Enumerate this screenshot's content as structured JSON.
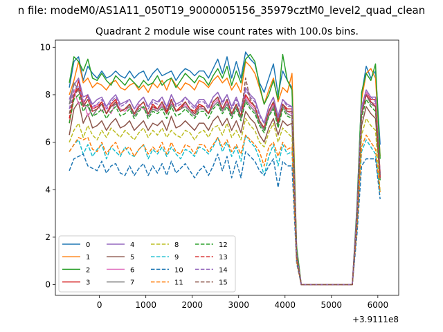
{
  "chart_data": {
    "type": "line",
    "suptitle": "n file: modeM0/AS1A11_050T19_9000005156_35979cztM0_level2_quad_clean",
    "title": "Quadrant 2 module wise count rates with 100.0s bins.",
    "xlabel": "",
    "ylabel": "",
    "x_offset_label": "+3.9111e8",
    "xlim": [
      -950,
      6450
    ],
    "ylim": [
      -0.45,
      10.3
    ],
    "xticks": [
      0,
      1000,
      2000,
      3000,
      4000,
      5000,
      6000
    ],
    "yticks": [
      0,
      2,
      4,
      6,
      8,
      10
    ],
    "grid": false,
    "legend": {
      "location": "lower-left",
      "columns": 4
    },
    "x": [
      -650,
      -550,
      -450,
      -350,
      -250,
      -150,
      -50,
      50,
      150,
      250,
      350,
      450,
      550,
      650,
      750,
      850,
      950,
      1050,
      1150,
      1250,
      1350,
      1450,
      1550,
      1650,
      1750,
      1850,
      1950,
      2050,
      2150,
      2250,
      2350,
      2450,
      2550,
      2650,
      2750,
      2850,
      2950,
      3050,
      3150,
      3250,
      3350,
      3450,
      3550,
      3650,
      3750,
      3850,
      3950,
      4050,
      4150,
      4250,
      4350,
      5450,
      5550,
      5650,
      5750,
      5850,
      5950,
      6050
    ],
    "series": [
      {
        "name": "0",
        "color": "#1f77b4",
        "dash": "solid",
        "values": [
          8.3,
          9.4,
          9.6,
          8.6,
          9.2,
          8.9,
          8.7,
          9.0,
          8.7,
          8.8,
          9.0,
          8.8,
          8.7,
          9.0,
          8.7,
          8.9,
          9.0,
          8.6,
          8.9,
          9.1,
          8.8,
          8.9,
          9.0,
          8.6,
          8.9,
          9.1,
          9.0,
          8.8,
          9.0,
          9.0,
          8.7,
          9.1,
          9.5,
          8.9,
          9.6,
          8.7,
          9.4,
          8.7,
          9.8,
          9.5,
          9.3,
          8.5,
          8.1,
          8.7,
          9.3,
          8.0,
          9.0,
          8.6,
          8.3,
          1.5,
          0,
          0,
          3.3,
          8.0,
          9.2,
          8.7,
          9.0,
          5.9
        ]
      },
      {
        "name": "1",
        "color": "#ff7f0e",
        "dash": "solid",
        "values": [
          8.0,
          8.6,
          9.4,
          8.5,
          8.7,
          8.3,
          8.5,
          8.4,
          8.2,
          8.5,
          8.6,
          8.3,
          8.2,
          8.4,
          8.5,
          8.2,
          8.4,
          8.1,
          8.5,
          8.3,
          8.6,
          8.2,
          8.7,
          8.4,
          8.2,
          8.5,
          8.4,
          8.2,
          8.6,
          8.5,
          8.3,
          8.6,
          8.8,
          8.5,
          8.7,
          8.2,
          8.5,
          8.1,
          9.4,
          9.2,
          8.9,
          8.3,
          7.6,
          8.2,
          8.7,
          7.7,
          8.3,
          8.1,
          8.9,
          1.5,
          0,
          0,
          3.1,
          7.8,
          8.9,
          9.1,
          8.7,
          5.4
        ]
      },
      {
        "name": "2",
        "color": "#2ca02c",
        "dash": "solid",
        "values": [
          8.5,
          9.6,
          9.4,
          9.0,
          9.5,
          8.7,
          8.6,
          8.9,
          8.6,
          8.4,
          8.8,
          8.6,
          8.4,
          8.7,
          8.5,
          8.3,
          8.6,
          8.4,
          8.5,
          8.8,
          8.4,
          8.6,
          8.7,
          8.3,
          8.6,
          8.9,
          8.7,
          8.5,
          8.8,
          8.7,
          8.4,
          8.8,
          9.1,
          8.7,
          9.2,
          8.4,
          9.0,
          8.5,
          9.5,
          9.7,
          9.4,
          8.4,
          7.6,
          8.0,
          8.6,
          7.8,
          9.7,
          8.6,
          8.2,
          1.6,
          0,
          0,
          3.2,
          8.1,
          8.9,
          8.6,
          9.3,
          5.3
        ]
      },
      {
        "name": "3",
        "color": "#d62728",
        "dash": "solid",
        "values": [
          6.8,
          7.9,
          8.6,
          7.6,
          8.0,
          7.4,
          7.5,
          7.7,
          7.2,
          7.6,
          7.8,
          7.3,
          7.4,
          7.6,
          7.2,
          7.5,
          7.7,
          7.2,
          7.6,
          7.4,
          7.7,
          7.3,
          7.8,
          7.3,
          7.5,
          7.7,
          7.4,
          7.3,
          7.6,
          7.5,
          7.2,
          7.7,
          7.9,
          7.4,
          7.8,
          7.2,
          7.6,
          7.1,
          8.0,
          7.7,
          7.5,
          6.9,
          6.6,
          7.3,
          7.7,
          6.9,
          7.6,
          7.4,
          7.4,
          1.2,
          0,
          0,
          2.8,
          7.2,
          8.1,
          7.8,
          7.8,
          4.7
        ]
      },
      {
        "name": "4",
        "color": "#9467bd",
        "dash": "solid",
        "values": [
          7.8,
          8.4,
          8.7,
          7.9,
          8.0,
          7.6,
          7.8,
          7.9,
          7.5,
          7.8,
          8.0,
          7.6,
          7.7,
          7.8,
          7.4,
          7.7,
          7.9,
          7.5,
          7.8,
          7.7,
          7.9,
          7.5,
          8.0,
          7.6,
          7.7,
          7.9,
          7.7,
          7.5,
          7.8,
          7.8,
          7.5,
          7.9,
          8.1,
          7.7,
          8.0,
          7.5,
          7.9,
          7.4,
          8.3,
          8.0,
          7.8,
          7.2,
          6.8,
          7.5,
          7.9,
          7.1,
          7.8,
          7.6,
          7.5,
          1.3,
          0,
          0,
          3.0,
          7.5,
          8.2,
          7.9,
          7.9,
          4.6
        ]
      },
      {
        "name": "5",
        "color": "#8c564b",
        "dash": "solid",
        "values": [
          6.3,
          7.4,
          7.7,
          6.8,
          7.2,
          6.6,
          6.7,
          6.9,
          6.5,
          6.8,
          7.0,
          6.6,
          6.7,
          6.9,
          6.5,
          6.7,
          6.9,
          6.5,
          6.8,
          6.7,
          6.9,
          6.5,
          7.1,
          6.6,
          6.7,
          6.9,
          6.7,
          6.5,
          6.8,
          6.8,
          6.5,
          6.9,
          7.1,
          6.7,
          7.0,
          6.5,
          6.9,
          6.4,
          7.3,
          7.0,
          6.8,
          6.3,
          6.0,
          6.6,
          7.0,
          6.3,
          6.9,
          6.7,
          6.8,
          1.2,
          0,
          0,
          2.6,
          6.7,
          7.5,
          7.2,
          7.0,
          4.4
        ]
      },
      {
        "name": "6",
        "color": "#e377c2",
        "dash": "solid",
        "values": [
          7.6,
          8.2,
          7.6,
          7.8,
          7.1,
          7.4,
          7.6,
          7.3,
          7.5,
          7.2,
          7.7,
          7.4,
          7.3,
          7.5,
          7.2,
          7.6,
          7.4,
          7.2,
          7.5,
          7.3,
          7.6,
          7.2,
          7.7,
          7.3,
          7.4,
          7.6,
          7.3,
          7.2,
          7.5,
          7.4,
          7.2,
          7.6,
          7.8,
          7.3,
          7.7,
          7.1,
          7.5,
          7.0,
          7.9,
          7.6,
          7.4,
          6.9,
          6.5,
          7.2,
          7.6,
          6.8,
          7.6,
          7.3,
          7.2,
          1.2,
          0,
          0,
          2.9,
          7.3,
          8.1,
          7.7,
          7.6,
          4.5
        ]
      },
      {
        "name": "7",
        "color": "#7f7f7f",
        "dash": "solid",
        "values": [
          7.6,
          8.5,
          8.2,
          7.6,
          7.5,
          7.1,
          7.4,
          7.6,
          7.2,
          7.5,
          7.6,
          7.3,
          7.4,
          7.5,
          7.1,
          7.4,
          7.5,
          7.1,
          7.4,
          7.3,
          7.5,
          7.2,
          7.6,
          7.3,
          7.4,
          7.5,
          7.3,
          7.1,
          7.4,
          7.4,
          7.2,
          7.5,
          7.7,
          7.3,
          7.6,
          7.1,
          7.5,
          7.0,
          7.8,
          7.5,
          7.3,
          6.8,
          6.5,
          7.1,
          7.5,
          6.7,
          7.5,
          7.2,
          7.1,
          1.2,
          0,
          0,
          2.8,
          7.2,
          8.0,
          7.6,
          7.5,
          4.6
        ]
      },
      {
        "name": "8",
        "color": "#bcbd22",
        "dash": "dashed",
        "values": [
          6.0,
          6.5,
          6.8,
          6.2,
          6.7,
          6.3,
          6.1,
          6.5,
          6.2,
          6.6,
          6.4,
          6.2,
          6.5,
          6.3,
          6.1,
          6.4,
          6.6,
          6.2,
          6.5,
          6.3,
          6.6,
          6.2,
          6.5,
          6.3,
          6.2,
          6.5,
          6.4,
          6.1,
          6.4,
          6.5,
          6.2,
          6.6,
          6.7,
          6.3,
          6.8,
          6.2,
          6.5,
          6.1,
          7.0,
          6.7,
          6.5,
          6.0,
          5.8,
          6.4,
          6.8,
          6.0,
          6.6,
          6.4,
          6.2,
          1.1,
          0,
          0,
          2.5,
          6.3,
          7.0,
          6.7,
          6.5,
          3.9
        ]
      },
      {
        "name": "9",
        "color": "#17becf",
        "dash": "dashed",
        "values": [
          5.6,
          5.9,
          6.1,
          5.5,
          5.9,
          5.4,
          5.7,
          5.9,
          5.3,
          5.8,
          5.6,
          5.4,
          5.8,
          5.5,
          5.4,
          5.7,
          5.9,
          5.3,
          5.7,
          5.5,
          5.8,
          5.4,
          5.8,
          5.5,
          5.3,
          5.7,
          5.6,
          5.4,
          5.8,
          5.7,
          5.5,
          5.8,
          6.2,
          5.6,
          6.0,
          5.4,
          5.8,
          5.2,
          6.3,
          6.0,
          5.8,
          5.3,
          4.6,
          5.4,
          5.9,
          5.0,
          5.9,
          5.5,
          5.6,
          1.0,
          0,
          0,
          2.3,
          5.6,
          6.1,
          5.8,
          5.5,
          3.8
        ]
      },
      {
        "name": "10",
        "color": "#1f77b4",
        "dash": "dashed",
        "values": [
          4.8,
          5.3,
          5.4,
          5.5,
          5.0,
          4.9,
          4.8,
          5.2,
          4.7,
          5.0,
          5.1,
          4.7,
          4.6,
          5.0,
          4.6,
          4.9,
          5.1,
          4.6,
          5.0,
          4.7,
          5.1,
          4.6,
          5.2,
          4.7,
          4.9,
          5.1,
          4.8,
          4.5,
          4.8,
          5.0,
          4.6,
          5.0,
          5.5,
          4.8,
          5.4,
          4.5,
          5.2,
          4.5,
          5.6,
          5.4,
          5.2,
          4.8,
          4.6,
          5.0,
          5.3,
          4.1,
          5.2,
          5.0,
          5.0,
          0.9,
          0,
          0,
          2.1,
          5.0,
          5.3,
          5.3,
          5.3,
          3.6
        ]
      },
      {
        "name": "11",
        "color": "#ff7f0e",
        "dash": "dashed",
        "values": [
          5.6,
          5.9,
          6.2,
          6.1,
          6.2,
          5.7,
          5.6,
          6.0,
          5.5,
          5.8,
          6.0,
          5.5,
          5.7,
          5.8,
          5.4,
          5.7,
          5.9,
          5.5,
          5.8,
          5.6,
          6.0,
          5.5,
          6.0,
          5.6,
          5.5,
          5.9,
          5.8,
          5.5,
          5.9,
          5.9,
          5.6,
          5.9,
          6.2,
          5.8,
          6.1,
          5.6,
          5.9,
          5.5,
          6.3,
          6.1,
          5.9,
          5.6,
          5.0,
          5.8,
          6.0,
          5.4,
          6.0,
          5.7,
          5.8,
          1.0,
          0,
          0,
          2.4,
          5.8,
          6.3,
          6.0,
          5.7,
          3.9
        ]
      },
      {
        "name": "12",
        "color": "#2ca02c",
        "dash": "dashed",
        "values": [
          6.8,
          7.8,
          8.0,
          7.3,
          7.6,
          7.1,
          7.2,
          7.4,
          7.0,
          7.3,
          7.5,
          7.1,
          7.2,
          7.4,
          7.0,
          7.3,
          7.5,
          7.0,
          7.3,
          7.2,
          7.4,
          7.0,
          7.5,
          7.1,
          7.2,
          7.4,
          7.2,
          7.0,
          7.3,
          7.3,
          7.0,
          7.4,
          7.6,
          7.2,
          7.5,
          7.0,
          7.4,
          6.9,
          7.7,
          7.4,
          7.2,
          6.7,
          6.4,
          7.1,
          7.4,
          6.6,
          7.4,
          7.1,
          7.0,
          1.2,
          0,
          0,
          2.7,
          7.0,
          7.8,
          7.5,
          7.3,
          4.4
        ]
      },
      {
        "name": "13",
        "color": "#d62728",
        "dash": "dashed",
        "values": [
          7.0,
          8.0,
          8.3,
          7.5,
          7.8,
          7.3,
          7.4,
          7.7,
          7.2,
          7.5,
          7.7,
          7.3,
          7.4,
          7.6,
          7.2,
          7.5,
          7.7,
          7.2,
          7.5,
          7.4,
          7.7,
          7.2,
          7.8,
          7.3,
          7.4,
          7.7,
          7.4,
          7.2,
          7.5,
          7.5,
          7.2,
          7.7,
          7.9,
          7.4,
          7.8,
          7.2,
          7.6,
          7.1,
          8.0,
          7.7,
          7.5,
          6.9,
          6.6,
          7.3,
          7.7,
          6.8,
          7.6,
          7.3,
          7.3,
          1.2,
          0,
          0,
          2.8,
          7.2,
          8.0,
          7.7,
          7.5,
          4.5
        ]
      },
      {
        "name": "14",
        "color": "#9467bd",
        "dash": "dashed",
        "values": [
          7.4,
          8.2,
          8.4,
          7.7,
          7.9,
          7.5,
          7.6,
          7.8,
          7.4,
          7.7,
          7.9,
          7.5,
          7.6,
          7.8,
          7.4,
          7.7,
          7.9,
          7.4,
          7.7,
          7.6,
          7.9,
          7.4,
          8.0,
          7.5,
          7.6,
          7.9,
          7.6,
          7.4,
          7.7,
          7.7,
          7.4,
          7.9,
          8.1,
          7.6,
          8.0,
          7.4,
          7.8,
          7.3,
          8.2,
          7.9,
          7.7,
          7.1,
          6.8,
          7.5,
          7.9,
          7.0,
          7.8,
          7.5,
          7.5,
          1.3,
          0,
          0,
          2.9,
          7.4,
          8.2,
          7.9,
          7.7,
          4.6
        ]
      },
      {
        "name": "15",
        "color": "#8c564b",
        "dash": "dashed",
        "values": [
          7.2,
          8.0,
          8.2,
          7.5,
          7.8,
          7.3,
          7.4,
          7.6,
          7.2,
          7.5,
          7.7,
          7.3,
          7.4,
          7.6,
          7.2,
          7.5,
          7.7,
          7.2,
          7.5,
          7.4,
          7.7,
          7.2,
          7.8,
          7.3,
          7.4,
          7.7,
          7.4,
          7.2,
          7.5,
          7.5,
          7.2,
          7.7,
          7.9,
          7.4,
          7.8,
          7.2,
          7.6,
          7.1,
          8.7,
          7.8,
          7.5,
          6.9,
          6.6,
          7.3,
          7.7,
          6.8,
          7.6,
          7.3,
          7.3,
          1.2,
          0,
          0,
          2.8,
          7.2,
          8.0,
          7.7,
          7.5,
          4.5
        ]
      }
    ]
  }
}
